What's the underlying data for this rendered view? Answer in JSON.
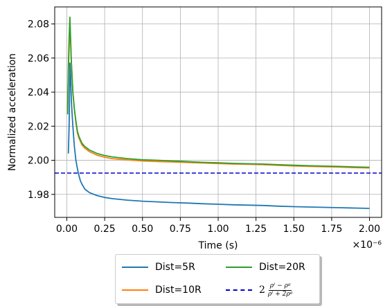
{
  "chart_data": {
    "type": "line",
    "xlabel": "Time (s)",
    "ylabel": "Normalized acceleration",
    "x_offset_label": "×10⁻⁶",
    "xlim": [
      -0.08,
      2.08
    ],
    "ylim": [
      1.9665,
      2.09
    ],
    "x_ticks": [
      0.0,
      0.25,
      0.5,
      0.75,
      1.0,
      1.25,
      1.5,
      1.75,
      2.0
    ],
    "x_tick_labels": [
      "0.00",
      "0.25",
      "0.50",
      "0.75",
      "1.00",
      "1.25",
      "1.50",
      "1.75",
      "2.00"
    ],
    "y_ticks": [
      1.98,
      2.0,
      2.02,
      2.04,
      2.06,
      2.08
    ],
    "y_tick_labels": [
      "1.98",
      "2.00",
      "2.02",
      "2.04",
      "2.06",
      "2.08"
    ],
    "grid": true,
    "legend_placement": "below",
    "series": [
      {
        "name": "Dist=5R",
        "color": "#1f77b4",
        "style": "solid",
        "x": [
          0.01,
          0.015,
          0.02,
          0.025,
          0.03,
          0.04,
          0.05,
          0.06,
          0.07,
          0.08,
          0.09,
          0.1,
          0.12,
          0.15,
          0.2,
          0.25,
          0.3,
          0.4,
          0.5,
          0.6,
          0.7,
          0.8,
          0.9,
          1.0,
          1.1,
          1.2,
          1.3,
          1.4,
          1.5,
          1.6,
          1.7,
          1.8,
          1.9,
          2.0
        ],
        "y": [
          2.004,
          2.02,
          2.057,
          2.05,
          2.035,
          2.02,
          2.008,
          2.0,
          1.995,
          1.991,
          1.988,
          1.986,
          1.983,
          1.981,
          1.9793,
          1.9782,
          1.9775,
          1.9766,
          1.976,
          1.9756,
          1.9752,
          1.9749,
          1.9745,
          1.9742,
          1.9739,
          1.9737,
          1.9735,
          1.9731,
          1.9728,
          1.9726,
          1.9724,
          1.9722,
          1.972,
          1.9718
        ]
      },
      {
        "name": "Dist=10R",
        "color": "#ff7f0e",
        "style": "solid",
        "x": [
          0.005,
          0.01,
          0.015,
          0.02,
          0.025,
          0.03,
          0.04,
          0.05,
          0.06,
          0.07,
          0.08,
          0.1,
          0.12,
          0.15,
          0.2,
          0.25,
          0.3,
          0.4,
          0.5,
          0.6,
          0.7,
          0.8,
          0.9,
          1.0,
          1.1,
          1.2,
          1.3,
          1.4,
          1.5,
          1.6,
          1.7,
          1.8,
          1.9,
          2.0
        ],
        "y": [
          2.03,
          2.052,
          2.065,
          2.08,
          2.07,
          2.058,
          2.04,
          2.03,
          2.022,
          2.016,
          2.013,
          2.009,
          2.007,
          2.005,
          2.003,
          2.0018,
          2.001,
          2.0002,
          1.9996,
          1.9993,
          1.999,
          1.9987,
          1.9984,
          1.9981,
          1.9978,
          1.9976,
          1.9974,
          1.997,
          1.9967,
          1.9964,
          1.9962,
          1.996,
          1.9957,
          1.9955
        ]
      },
      {
        "name": "Dist=20R",
        "color": "#2ca02c",
        "style": "solid",
        "x": [
          0.005,
          0.01,
          0.015,
          0.02,
          0.025,
          0.03,
          0.04,
          0.05,
          0.06,
          0.07,
          0.08,
          0.1,
          0.12,
          0.15,
          0.2,
          0.25,
          0.3,
          0.4,
          0.5,
          0.6,
          0.7,
          0.8,
          0.9,
          1.0,
          1.1,
          1.2,
          1.3,
          1.4,
          1.5,
          1.6,
          1.7,
          1.8,
          1.9,
          2.0
        ],
        "y": [
          2.027,
          2.055,
          2.072,
          2.084,
          2.072,
          2.058,
          2.04,
          2.03,
          2.023,
          2.017,
          2.014,
          2.01,
          2.008,
          2.006,
          2.004,
          2.0028,
          2.002,
          2.001,
          2.0003,
          2.0,
          1.9996,
          1.9992,
          1.9988,
          1.9985,
          1.9982,
          1.998,
          1.9978,
          1.9974,
          1.9971,
          1.9968,
          1.9966,
          1.9964,
          1.9961,
          1.9959
        ]
      },
      {
        "name": "2(ρˡ − ρᵍ)/(ρˡ + 2ρᵍ)",
        "color": "#0000cc",
        "style": "dashed",
        "x": [
          -0.08,
          2.08
        ],
        "y": [
          1.9925,
          1.9925
        ]
      }
    ]
  },
  "legend": {
    "items": [
      {
        "label": "Dist=5R",
        "color": "#1f77b4"
      },
      {
        "label": "Dist=20R",
        "color": "#2ca02c"
      },
      {
        "label": "Dist=10R",
        "color": "#ff7f0e"
      }
    ],
    "formula": {
      "coefficient": "2",
      "numerator": "ρˡ − ρᵍ",
      "denominator": "ρˡ + 2ρᵍ",
      "color": "#0000cc"
    }
  }
}
